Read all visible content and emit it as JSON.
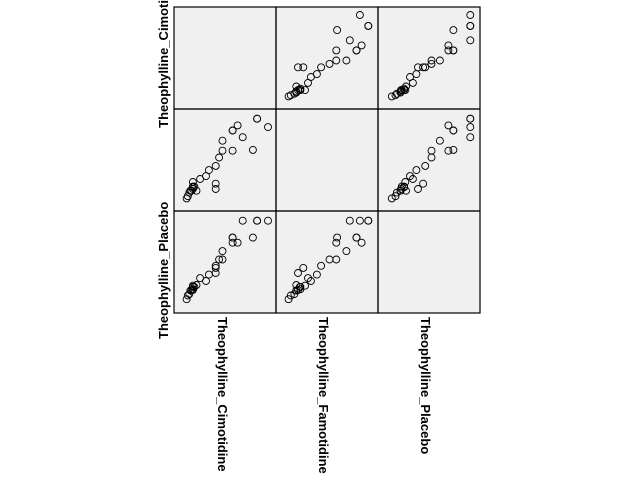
{
  "colors": {
    "panel_bg": "#f0f0f0",
    "frame": "#000000",
    "marker_stroke": "#000000",
    "page_bg": "#ffffff"
  },
  "chart_data": {
    "type": "scatter",
    "subtype": "scatterplot-matrix",
    "variables": [
      "Theophylline_Cimotidine",
      "Theophylline_Famotidine",
      "Theophylline_Placebo"
    ],
    "row_labels": [
      "Theophylline_Cimoti",
      "",
      "Theophylline_Placebo"
    ],
    "column_labels": [
      "Theophylline_Cimotidine",
      "Theophylline_Famotidine",
      "Theophylline_Placebo"
    ],
    "ranges": {
      "Theophylline_Cimotidine": [
        0,
        100
      ],
      "Theophylline_Famotidine": [
        0,
        100
      ],
      "Theophylline_Placebo": [
        0,
        100
      ]
    },
    "axis_ticks_shown": false,
    "grid": false,
    "marker": "open-circle",
    "observations": [
      {
        "Theophylline_Cimotidine": 5.3,
        "Theophylline_Famotidine": 5.3,
        "Theophylline_Placebo": 6.7
      },
      {
        "Theophylline_Cimotidine": 6.7,
        "Theophylline_Famotidine": 7.9,
        "Theophylline_Placebo": 11.1
      },
      {
        "Theophylline_Cimotidine": 8.5,
        "Theophylline_Famotidine": 12.1,
        "Theophylline_Placebo": 12.7
      },
      {
        "Theophylline_Cimotidine": 9.8,
        "Theophylline_Famotidine": 14.3,
        "Theophylline_Placebo": 16.9
      },
      {
        "Theophylline_Cimotidine": 11.1,
        "Theophylline_Famotidine": 14.3,
        "Theophylline_Placebo": 16.9
      },
      {
        "Theophylline_Cimotidine": 12.7,
        "Theophylline_Famotidine": 16.3,
        "Theophylline_Placebo": 17.6
      },
      {
        "Theophylline_Cimotidine": 12.7,
        "Theophylline_Famotidine": 19.1,
        "Theophylline_Placebo": 18.4
      },
      {
        "Theophylline_Cimotidine": 14.3,
        "Theophylline_Famotidine": 19.1,
        "Theophylline_Placebo": 21.1
      },
      {
        "Theophylline_Cimotidine": 12.7,
        "Theophylline_Famotidine": 18.4,
        "Theophylline_Placebo": 21.1
      },
      {
        "Theophylline_Cimotidine": 12.7,
        "Theophylline_Famotidine": 24.4,
        "Theophylline_Placebo": 22.4
      },
      {
        "Theophylline_Cimotidine": 16.9,
        "Theophylline_Famotidine": 14.3,
        "Theophylline_Placebo": 23.2
      },
      {
        "Theophylline_Cimotidine": 21.1,
        "Theophylline_Famotidine": 27.9,
        "Theophylline_Placebo": 31.3
      },
      {
        "Theophylline_Cimotidine": 27.9,
        "Theophylline_Famotidine": 31.3,
        "Theophylline_Placebo": 27.9
      },
      {
        "Theophylline_Cimotidine": 31.3,
        "Theophylline_Famotidine": 38.2,
        "Theophylline_Placebo": 35.3
      },
      {
        "Theophylline_Cimotidine": 39.2,
        "Theophylline_Famotidine": 16.3,
        "Theophylline_Placebo": 37.2
      },
      {
        "Theophylline_Cimotidine": 39.2,
        "Theophylline_Famotidine": 22.4,
        "Theophylline_Placebo": 43.1
      },
      {
        "Theophylline_Cimotidine": 39.2,
        "Theophylline_Famotidine": 43.1,
        "Theophylline_Placebo": 45.6
      },
      {
        "Theophylline_Cimotidine": 47.1,
        "Theophylline_Famotidine": 60.8,
        "Theophylline_Placebo": 52.9
      },
      {
        "Theophylline_Cimotidine": 43.1,
        "Theophylline_Famotidine": 52.9,
        "Theophylline_Placebo": 52.9
      },
      {
        "Theophylline_Cimotidine": 47.1,
        "Theophylline_Famotidine": 72.5,
        "Theophylline_Placebo": 62.7
      },
      {
        "Theophylline_Cimotidine": 58.8,
        "Theophylline_Famotidine": 60.8,
        "Theophylline_Placebo": 72.5
      },
      {
        "Theophylline_Cimotidine": 58.8,
        "Theophylline_Famotidine": 84.3,
        "Theophylline_Placebo": 78.4
      },
      {
        "Theophylline_Cimotidine": 58.8,
        "Theophylline_Famotidine": 84.3,
        "Theophylline_Placebo": 78.4
      },
      {
        "Theophylline_Cimotidine": 64.7,
        "Theophylline_Famotidine": 90.2,
        "Theophylline_Placebo": 72.5
      },
      {
        "Theophylline_Cimotidine": 70.6,
        "Theophylline_Famotidine": 76.5,
        "Theophylline_Placebo": 98.0
      },
      {
        "Theophylline_Cimotidine": 82.4,
        "Theophylline_Famotidine": 61.8,
        "Theophylline_Placebo": 78.4
      },
      {
        "Theophylline_Cimotidine": 87.3,
        "Theophylline_Famotidine": 98.0,
        "Theophylline_Placebo": 98.0
      },
      {
        "Theophylline_Cimotidine": 87.3,
        "Theophylline_Famotidine": 98.0,
        "Theophylline_Placebo": 98.0
      },
      {
        "Theophylline_Cimotidine": 100.0,
        "Theophylline_Famotidine": 88.2,
        "Theophylline_Placebo": 98.0
      }
    ]
  }
}
